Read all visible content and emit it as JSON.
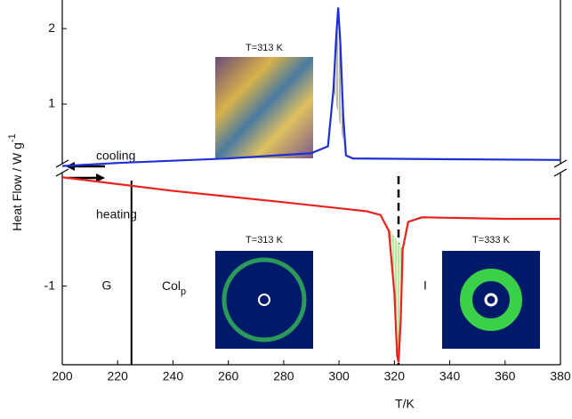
{
  "chart_data": {
    "type": "line",
    "xlabel": "T/K",
    "ylabel": "Heat Flow / W g",
    "ylabel_sup": "-1",
    "xlim": [
      200,
      380
    ],
    "xticks": [
      200,
      220,
      240,
      260,
      280,
      300,
      320,
      340,
      360,
      380
    ],
    "ylim": [
      0.14,
      2.32
    ],
    "yticks": [
      1,
      2
    ],
    "y2lim": [
      -2.04,
      0.49
    ],
    "y2ticks": [
      -1
    ],
    "series": [
      {
        "name": "cooling",
        "color": "#1f2fd6",
        "x": [
          200,
          220,
          260,
          290,
          296,
          298,
          299,
          299.7,
          300.5,
          301.5,
          302.5,
          305,
          340,
          380
        ],
        "values": [
          0.18,
          0.22,
          0.28,
          0.35,
          0.44,
          1.2,
          1.9,
          2.28,
          1.79,
          0.85,
          0.32,
          0.28,
          0.27,
          0.26
        ]
      },
      {
        "name": "heating",
        "color": "#e8231c",
        "axis": "y2",
        "x": [
          200,
          240,
          280,
          310,
          315,
          318,
          320,
          321,
          321.5,
          322.3,
          323,
          325,
          330,
          360,
          380
        ],
        "values": [
          0.44,
          0.26,
          0.11,
          -0.01,
          -0.06,
          -0.27,
          -1.09,
          -1.92,
          -2.01,
          -1.45,
          -0.51,
          -0.15,
          -0.09,
          -0.11,
          -0.11
        ]
      }
    ],
    "vline_solid": 225,
    "vline_dashed": 321.5,
    "phase_labels": {
      "g": "G",
      "col": "Col",
      "col_sub": "p",
      "i": "I"
    },
    "image_titles": [
      "T=313 K",
      "T=313 K",
      "T=333 K"
    ]
  }
}
